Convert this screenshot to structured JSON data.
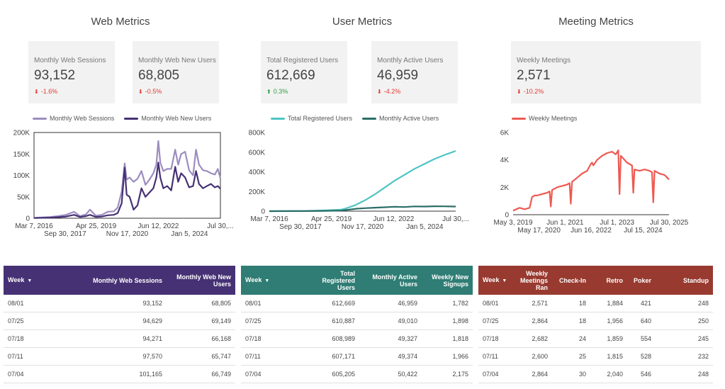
{
  "sections": {
    "web": {
      "title": "Web Metrics"
    },
    "user": {
      "title": "User Metrics"
    },
    "meeting": {
      "title": "Meeting Metrics"
    }
  },
  "scorecards": {
    "web_sessions": {
      "label": "Monthly Web Sessions",
      "value": "93,152",
      "delta": "-1.6%",
      "direction": "down"
    },
    "web_new_users": {
      "label": "Monthly Web New Users",
      "value": "68,805",
      "delta": "-0.5%",
      "direction": "down"
    },
    "total_registered": {
      "label": "Total Registered Users",
      "value": "612,669",
      "delta": "0.3%",
      "direction": "up"
    },
    "monthly_active": {
      "label": "Monthly Active Users",
      "value": "46,959",
      "delta": "-4.2%",
      "direction": "down"
    },
    "weekly_meetings": {
      "label": "Weekly Meetings",
      "value": "2,571",
      "delta": "-10.2%",
      "direction": "down"
    }
  },
  "colors": {
    "web_sessions": "#9c8dbf",
    "web_new_users": "#463174",
    "total_registered": "#4fc4c4",
    "monthly_active": "#2b6e68",
    "weekly_meetings": "#ee5a52",
    "web_header": "#463174",
    "user_header": "#2f7d74",
    "meeting_header": "#983a2f",
    "delta_down": "#e53935",
    "delta_up": "#2e9e3e"
  },
  "icons": {
    "down": "down-arrow-icon",
    "up": "up-arrow-icon",
    "sort": "sort-desc-icon"
  },
  "arrows": {
    "down": "⬇",
    "up": "⬆",
    "sort": "▼"
  },
  "chart_data": [
    {
      "type": "line",
      "title": "Web Metrics",
      "ylim": [
        0,
        200000
      ],
      "yticks": [
        0,
        50000,
        100000,
        150000,
        200000
      ],
      "ytick_labels": [
        "0",
        "50K",
        "100K",
        "150K",
        "200K"
      ],
      "xlim": [
        2016.18,
        2025.58
      ],
      "xticks": [
        {
          "x": 2016.18,
          "label": "Mar 7, 2016",
          "row": 0
        },
        {
          "x": 2017.75,
          "label": "Sep 30, 2017",
          "row": 1
        },
        {
          "x": 2019.31,
          "label": "Apr 25, 2019",
          "row": 0
        },
        {
          "x": 2020.88,
          "label": "Nov 17, 2020",
          "row": 1
        },
        {
          "x": 2022.45,
          "label": "Jun 12, 2022",
          "row": 0
        },
        {
          "x": 2024.02,
          "label": "Jan 5, 2024",
          "row": 1
        },
        {
          "x": 2025.58,
          "label": "Jul 30,...",
          "row": 0
        }
      ],
      "legend": [
        "Monthly Web Sessions",
        "Monthly Web New Users"
      ],
      "series": [
        {
          "name": "Monthly Web Sessions",
          "color": "#9c8dbf",
          "x": [
            2016.18,
            2016.6,
            2017.0,
            2017.4,
            2017.8,
            2018.2,
            2018.5,
            2018.8,
            2019.0,
            2019.3,
            2019.6,
            2019.9,
            2020.2,
            2020.4,
            2020.6,
            2020.75,
            2020.85,
            2021.0,
            2021.2,
            2021.4,
            2021.6,
            2021.8,
            2022.0,
            2022.2,
            2022.35,
            2022.45,
            2022.55,
            2022.7,
            2022.9,
            2023.1,
            2023.3,
            2023.45,
            2023.6,
            2023.8,
            2024.0,
            2024.2,
            2024.35,
            2024.5,
            2024.7,
            2024.9,
            2025.1,
            2025.3,
            2025.45,
            2025.58
          ],
          "y": [
            1000,
            2000,
            3000,
            5000,
            8000,
            15000,
            5000,
            9000,
            20000,
            6000,
            8000,
            15000,
            16000,
            25000,
            62000,
            128000,
            90000,
            95000,
            85000,
            92000,
            110000,
            78000,
            90000,
            105000,
            125000,
            180000,
            130000,
            110000,
            115000,
            115000,
            160000,
            125000,
            150000,
            155000,
            112000,
            100000,
            160000,
            125000,
            112000,
            110000,
            105000,
            102000,
            115000,
            93152
          ]
        },
        {
          "name": "Monthly Web New Users",
          "color": "#463174",
          "x": [
            2016.18,
            2016.6,
            2017.0,
            2017.4,
            2017.8,
            2018.2,
            2018.5,
            2018.8,
            2019.0,
            2019.3,
            2019.6,
            2019.9,
            2020.2,
            2020.4,
            2020.6,
            2020.75,
            2020.85,
            2021.0,
            2021.2,
            2021.4,
            2021.6,
            2021.8,
            2022.0,
            2022.2,
            2022.35,
            2022.45,
            2022.55,
            2022.7,
            2022.9,
            2023.1,
            2023.3,
            2023.45,
            2023.6,
            2023.8,
            2024.0,
            2024.2,
            2024.35,
            2024.5,
            2024.7,
            2024.9,
            2025.1,
            2025.3,
            2025.45,
            2025.58
          ],
          "y": [
            500,
            1000,
            1500,
            2500,
            4000,
            8000,
            3000,
            5000,
            8000,
            3000,
            4000,
            7000,
            8000,
            12000,
            35000,
            118000,
            55000,
            50000,
            20000,
            30000,
            70000,
            50000,
            60000,
            70000,
            95000,
            130000,
            95000,
            70000,
            75000,
            65000,
            120000,
            85000,
            105000,
            95000,
            72000,
            75000,
            110000,
            80000,
            70000,
            75000,
            80000,
            72000,
            75000,
            68805
          ]
        }
      ]
    },
    {
      "type": "line",
      "title": "User Metrics",
      "ylim": [
        0,
        800000
      ],
      "yticks": [
        0,
        200000,
        400000,
        600000,
        800000
      ],
      "ytick_labels": [
        "0",
        "200K",
        "400K",
        "600K",
        "800K"
      ],
      "xlim": [
        2016.18,
        2025.58
      ],
      "xticks": [
        {
          "x": 2016.18,
          "label": "Mar 7, 2016",
          "row": 0
        },
        {
          "x": 2017.75,
          "label": "Sep 30, 2017",
          "row": 1
        },
        {
          "x": 2019.31,
          "label": "Apr 25, 2019",
          "row": 0
        },
        {
          "x": 2020.88,
          "label": "Nov 17, 2020",
          "row": 1
        },
        {
          "x": 2022.45,
          "label": "Jun 12, 2022",
          "row": 0
        },
        {
          "x": 2024.02,
          "label": "Jan 5, 2024",
          "row": 1
        },
        {
          "x": 2025.58,
          "label": "Jul 30,...",
          "row": 0
        }
      ],
      "legend": [
        "Total Registered Users",
        "Monthly Active Users"
      ],
      "series": [
        {
          "name": "Total Registered Users",
          "color": "#4fc4c4",
          "x": [
            2016.18,
            2018.0,
            2019.0,
            2019.8,
            2020.0,
            2020.5,
            2021.0,
            2021.5,
            2022.0,
            2022.5,
            2023.0,
            2023.5,
            2024.0,
            2024.5,
            2025.0,
            2025.58
          ],
          "y": [
            0,
            2000,
            8000,
            15000,
            25000,
            60000,
            110000,
            170000,
            240000,
            310000,
            370000,
            430000,
            480000,
            530000,
            570000,
            612669
          ]
        },
        {
          "name": "Monthly Active Users",
          "color": "#2b6e68",
          "x": [
            2016.18,
            2018.0,
            2019.0,
            2019.8,
            2020.2,
            2020.6,
            2021.0,
            2021.5,
            2022.0,
            2022.5,
            2023.0,
            2023.5,
            2024.0,
            2024.5,
            2025.0,
            2025.58
          ],
          "y": [
            0,
            1000,
            3000,
            6000,
            15000,
            25000,
            30000,
            35000,
            40000,
            45000,
            42000,
            48000,
            47000,
            50000,
            49000,
            46959
          ]
        }
      ]
    },
    {
      "type": "line",
      "title": "Meeting Metrics",
      "ylim": [
        0,
        6000
      ],
      "yticks": [
        0,
        2000,
        4000,
        6000
      ],
      "ytick_labels": [
        "0",
        "2K",
        "4K",
        "6K"
      ],
      "xlim": [
        2019.34,
        2025.58
      ],
      "xticks": [
        {
          "x": 2019.34,
          "label": "May 3, 2019",
          "row": 0
        },
        {
          "x": 2020.38,
          "label": "May 17, 2020",
          "row": 1
        },
        {
          "x": 2021.42,
          "label": "Jun 1, 2021",
          "row": 0
        },
        {
          "x": 2022.46,
          "label": "Jun 16, 2022",
          "row": 1
        },
        {
          "x": 2023.5,
          "label": "Jul 1, 2023",
          "row": 0
        },
        {
          "x": 2024.54,
          "label": "Jul 15, 2024",
          "row": 1
        },
        {
          "x": 2025.58,
          "label": "Jul 30, 2025",
          "row": 0
        }
      ],
      "legend": [
        "Weekly Meetings"
      ],
      "series": [
        {
          "name": "Weekly Meetings",
          "color": "#ee5a52",
          "x": [
            2019.34,
            2019.6,
            2019.8,
            2020.0,
            2020.1,
            2020.2,
            2020.3,
            2020.5,
            2020.7,
            2020.8,
            2020.85,
            2020.9,
            2021.1,
            2021.3,
            2021.5,
            2021.6,
            2021.65,
            2021.7,
            2021.9,
            2022.1,
            2022.3,
            2022.45,
            2022.5,
            2022.55,
            2022.7,
            2022.9,
            2023.1,
            2023.3,
            2023.45,
            2023.55,
            2023.6,
            2023.65,
            2023.75,
            2023.9,
            2024.0,
            2024.1,
            2024.15,
            2024.2,
            2024.4,
            2024.6,
            2024.8,
            2024.9,
            2024.95,
            2025.0,
            2025.2,
            2025.4,
            2025.58
          ],
          "y": [
            300,
            500,
            400,
            500,
            1300,
            1400,
            1400,
            1500,
            1600,
            1700,
            600,
            1800,
            2000,
            2100,
            2200,
            2300,
            800,
            2400,
            2700,
            3000,
            3200,
            3700,
            3800,
            3600,
            4000,
            4300,
            4500,
            4600,
            4400,
            4700,
            1500,
            4300,
            4100,
            3800,
            3700,
            3600,
            1600,
            3300,
            3200,
            3300,
            3200,
            3100,
            900,
            3200,
            3000,
            2900,
            2571
          ]
        }
      ]
    }
  ],
  "tables": {
    "web": {
      "columns": [
        "Week",
        "Monthly Web Sessions",
        "Monthly Web New Users"
      ],
      "rows": [
        [
          "08/01",
          "93,152",
          "68,805"
        ],
        [
          "07/25",
          "94,629",
          "69,149"
        ],
        [
          "07/18",
          "94,271",
          "66,168"
        ],
        [
          "07/11",
          "97,570",
          "65,747"
        ],
        [
          "07/04",
          "101,165",
          "66,749"
        ]
      ]
    },
    "user": {
      "columns": [
        "Week",
        "Total Registered Users",
        "Monthly Active Users",
        "Weekly New Signups"
      ],
      "rows": [
        [
          "08/01",
          "612,669",
          "46,959",
          "1,782"
        ],
        [
          "07/25",
          "610,887",
          "49,010",
          "1,898"
        ],
        [
          "07/18",
          "608,989",
          "49,327",
          "1,818"
        ],
        [
          "07/11",
          "607,171",
          "49,374",
          "1,966"
        ],
        [
          "07/04",
          "605,205",
          "50,422",
          "2,175"
        ]
      ]
    },
    "meeting": {
      "columns": [
        "Week",
        "Weekly Meetings Ran",
        "Check-In",
        "Retro",
        "Poker",
        "Standup"
      ],
      "rows": [
        [
          "08/01",
          "2,571",
          "18",
          "1,884",
          "421",
          "248"
        ],
        [
          "07/25",
          "2,864",
          "18",
          "1,956",
          "640",
          "250"
        ],
        [
          "07/18",
          "2,682",
          "24",
          "1,859",
          "554",
          "245"
        ],
        [
          "07/11",
          "2,600",
          "25",
          "1,815",
          "528",
          "232"
        ],
        [
          "07/04",
          "2,864",
          "30",
          "2,040",
          "546",
          "248"
        ]
      ]
    }
  }
}
